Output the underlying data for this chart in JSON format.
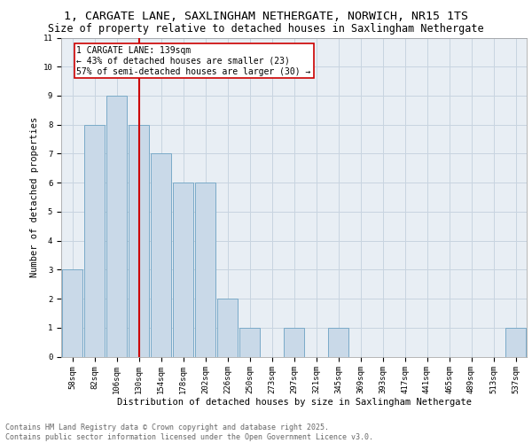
{
  "title_line1": "1, CARGATE LANE, SAXLINGHAM NETHERGATE, NORWICH, NR15 1TS",
  "title_line2": "Size of property relative to detached houses in Saxlingham Nethergate",
  "xlabel": "Distribution of detached houses by size in Saxlingham Nethergate",
  "ylabel": "Number of detached properties",
  "bar_labels": [
    "58sqm",
    "82sqm",
    "106sqm",
    "130sqm",
    "154sqm",
    "178sqm",
    "202sqm",
    "226sqm",
    "250sqm",
    "273sqm",
    "297sqm",
    "321sqm",
    "345sqm",
    "369sqm",
    "393sqm",
    "417sqm",
    "441sqm",
    "465sqm",
    "489sqm",
    "513sqm",
    "537sqm"
  ],
  "bar_values": [
    3,
    8,
    9,
    8,
    7,
    6,
    6,
    2,
    1,
    0,
    1,
    0,
    1,
    0,
    0,
    0,
    0,
    0,
    0,
    0,
    1
  ],
  "bar_color": "#c9d9e8",
  "bar_edge_color": "#7aaac8",
  "vline_x_idx": 3,
  "vline_color": "#cc0000",
  "annotation_text": "1 CARGATE LANE: 139sqm\n← 43% of detached houses are smaller (23)\n57% of semi-detached houses are larger (30) →",
  "annotation_box_color": "white",
  "annotation_box_edge_color": "#cc0000",
  "ylim": [
    0,
    11
  ],
  "yticks": [
    0,
    1,
    2,
    3,
    4,
    5,
    6,
    7,
    8,
    9,
    10,
    11
  ],
  "background_color": "#e8eef4",
  "grid_color": "#c8d4e0",
  "footer_text": "Contains HM Land Registry data © Crown copyright and database right 2025.\nContains public sector information licensed under the Open Government Licence v3.0.",
  "title_fontsize": 9.5,
  "subtitle_fontsize": 8.5,
  "axis_label_fontsize": 7.5,
  "tick_fontsize": 6.5,
  "annotation_fontsize": 7,
  "footer_fontsize": 6
}
